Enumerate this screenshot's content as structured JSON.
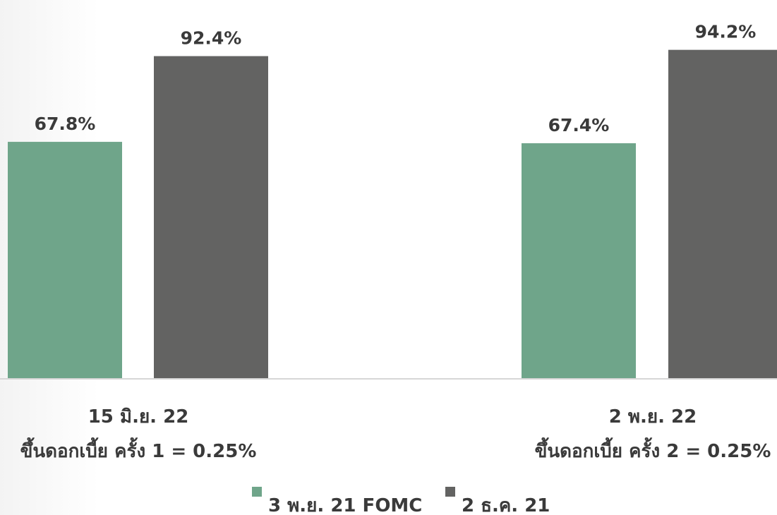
{
  "chart_data": {
    "type": "bar",
    "categories": [
      {
        "line1": "15 มิ.ย. 22",
        "line2": "ขึ้นดอกเบี้ย ครั้ง 1 = 0.25%"
      },
      {
        "line1": "2 พ.ย. 22",
        "line2": "ขึ้นดอกเบี้ย ครั้ง 2 = 0.25%"
      }
    ],
    "series": [
      {
        "name": "3 พ.ย. 21 FOMC",
        "color": "#6fa58a",
        "values": [
          67.8,
          67.4
        ],
        "value_labels": [
          "67.8%",
          "67.4%"
        ]
      },
      {
        "name": "2 ธ.ค. 21",
        "color": "#636362",
        "values": [
          92.4,
          94.2
        ],
        "value_labels": [
          "92.4%",
          "94.2%"
        ]
      }
    ],
    "ylim": [
      0,
      100
    ],
    "grid": false,
    "legend_position": "bottom-center"
  }
}
